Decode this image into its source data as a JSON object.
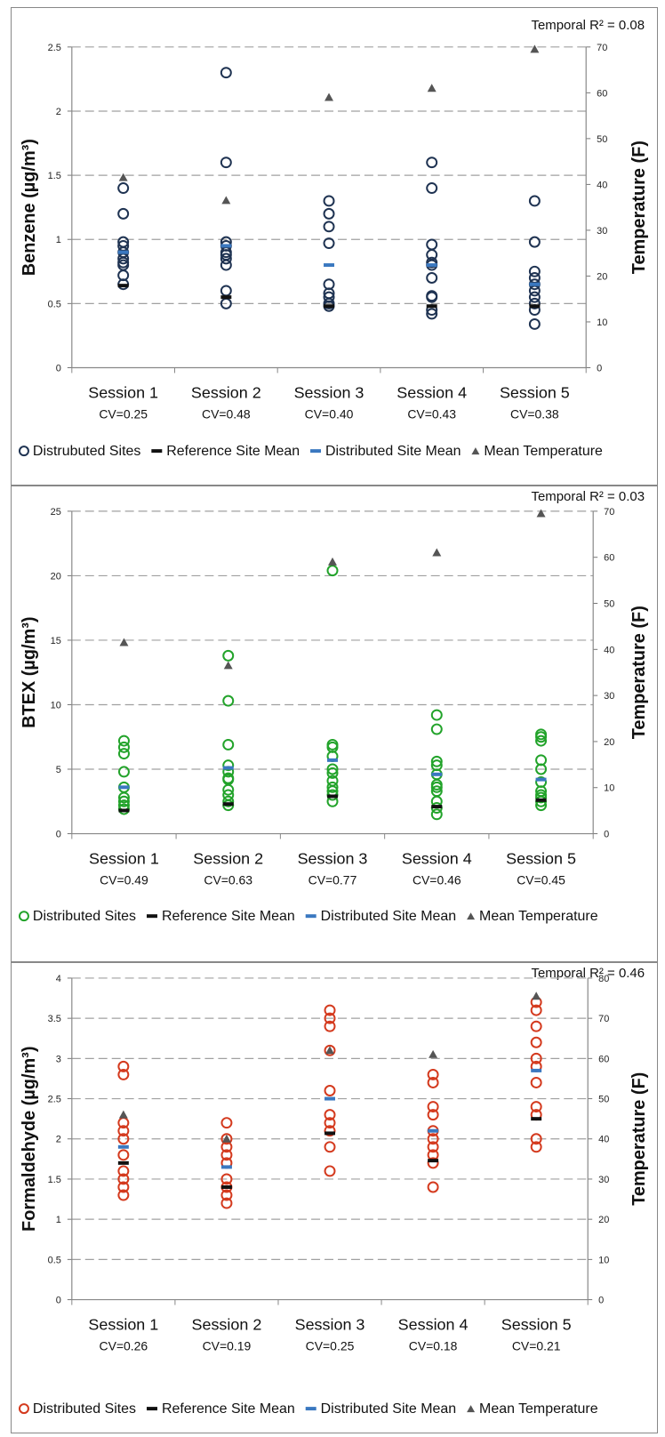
{
  "legend_labels": {
    "distributed_benzene": "Distrubuted Sites",
    "distributed": "Distributed Sites",
    "reference_mean": "Reference Site Mean",
    "distributed_mean": "Distributed Site Mean",
    "temperature": "Mean Temperature"
  },
  "colors": {
    "benzene": "#1f3352",
    "btex": "#22a32a",
    "formaldehyde": "#d43a1e",
    "reference_mean": "#111111",
    "distributed_mean": "#3a78c0",
    "temperature": "#555555",
    "grid": "#a0a0a0"
  },
  "chart_data": [
    {
      "type": "scatter",
      "ylabel": "Benzene (µg/m³)",
      "y2label": "Temperature (F)",
      "ylim": [
        0,
        2.5
      ],
      "yticks": [
        0,
        0.5,
        1,
        1.5,
        2,
        2.5
      ],
      "y2lim": [
        0,
        70
      ],
      "y2ticks": [
        0,
        10,
        20,
        30,
        40,
        50,
        60,
        70
      ],
      "r2_label": "Temporal R² = 0.08",
      "categories": [
        "Session 1",
        "Session 2",
        "Session 3",
        "Session 4",
        "Session 5"
      ],
      "cv_labels": [
        "CV=0.25",
        "CV=0.48",
        "CV=0.40",
        "CV=0.43",
        "CV=0.38"
      ],
      "legend_key": "distributed_benzene",
      "series": [
        {
          "name": "Distrubuted Sites",
          "kind": "distributed",
          "color_key": "benzene",
          "values": [
            [
              1.4,
              1.2,
              0.98,
              0.95,
              0.9,
              0.85,
              0.82,
              0.8,
              0.72,
              0.65
            ],
            [
              2.3,
              1.6,
              0.98,
              0.95,
              0.9,
              0.88,
              0.85,
              0.8,
              0.6,
              0.5
            ],
            [
              1.3,
              1.2,
              1.1,
              0.97,
              0.65,
              0.58,
              0.55,
              0.5,
              0.48
            ],
            [
              1.6,
              1.4,
              0.96,
              0.88,
              0.82,
              0.8,
              0.7,
              0.56,
              0.55,
              0.45,
              0.42
            ],
            [
              1.3,
              0.98,
              0.75,
              0.7,
              0.65,
              0.6,
              0.55,
              0.5,
              0.45,
              0.34
            ]
          ]
        },
        {
          "name": "Reference Site Mean",
          "kind": "reference_mean",
          "values": [
            0.64,
            0.55,
            0.48,
            0.48,
            0.48
          ]
        },
        {
          "name": "Distributed Site Mean",
          "kind": "distributed_mean",
          "values": [
            0.9,
            0.95,
            0.8,
            0.8,
            0.65
          ]
        },
        {
          "name": "Mean Temperature",
          "kind": "temperature",
          "axis": "y2",
          "values": [
            41.5,
            36.5,
            59,
            61,
            69.5
          ]
        }
      ]
    },
    {
      "type": "scatter",
      "ylabel": "BTEX (µg/m³)",
      "y2label": "Temperature (F)",
      "ylim": [
        0,
        25
      ],
      "yticks": [
        0,
        5,
        10,
        15,
        20,
        25
      ],
      "y2lim": [
        0,
        70
      ],
      "y2ticks": [
        0,
        10,
        20,
        30,
        40,
        50,
        60,
        70
      ],
      "r2_label": "Temporal R² = 0.03",
      "categories": [
        "Session 1",
        "Session 2",
        "Session 3",
        "Session 4",
        "Session 5"
      ],
      "cv_labels": [
        "CV=0.49",
        "CV=0.63",
        "CV=0.77",
        "CV=0.46",
        "CV=0.45"
      ],
      "legend_key": "distributed",
      "series": [
        {
          "name": "Distributed Sites",
          "kind": "distributed",
          "color_key": "btex",
          "values": [
            [
              7.2,
              6.7,
              6.2,
              4.8,
              3.6,
              2.8,
              2.5,
              2.2,
              1.9
            ],
            [
              13.8,
              10.3,
              6.9,
              5.3,
              4.8,
              4.3,
              4.2,
              3.4,
              3.0,
              2.5,
              2.2
            ],
            [
              20.4,
              6.9,
              6.7,
              6.0,
              5.0,
              4.7,
              4.1,
              3.6,
              3.3,
              3.0,
              2.5
            ],
            [
              9.2,
              8.1,
              5.6,
              5.3,
              4.6,
              3.8,
              3.6,
              3.3,
              2.5,
              2.0,
              1.5
            ],
            [
              7.7,
              7.5,
              7.2,
              5.7,
              5.0,
              4.0,
              3.3,
              3.0,
              2.8,
              2.5,
              2.2
            ]
          ]
        },
        {
          "name": "Reference Site Mean",
          "kind": "reference_mean",
          "values": [
            1.8,
            2.3,
            2.9,
            2.1,
            2.6
          ]
        },
        {
          "name": "Distributed Site Mean",
          "kind": "distributed_mean",
          "values": [
            3.6,
            5.1,
            5.7,
            4.6,
            4.2
          ]
        },
        {
          "name": "Mean Temperature",
          "kind": "temperature",
          "axis": "y2",
          "values": [
            41.5,
            36.5,
            59,
            61,
            69.5
          ]
        }
      ]
    },
    {
      "type": "scatter",
      "ylabel": "Formaldehyde (µg/m³)",
      "y2label": "Temperature (F)",
      "ylim": [
        0,
        4
      ],
      "yticks": [
        0,
        0.5,
        1,
        1.5,
        2,
        2.5,
        3,
        3.5,
        4
      ],
      "y2lim": [
        0,
        80
      ],
      "y2ticks": [
        0,
        10,
        20,
        30,
        40,
        50,
        60,
        70,
        80
      ],
      "r2_label": "Temporal R² = 0.46",
      "categories": [
        "Session 1",
        "Session 2",
        "Session 3",
        "Session 4",
        "Session 5"
      ],
      "cv_labels": [
        "CV=0.26",
        "CV=0.19",
        "CV=0.25",
        "CV=0.18",
        "CV=0.21"
      ],
      "legend_key": "distributed",
      "series": [
        {
          "name": "Distributed Sites",
          "kind": "distributed",
          "color_key": "formaldehyde",
          "values": [
            [
              2.9,
              2.8,
              2.2,
              2.1,
              2.0,
              1.8,
              1.6,
              1.5,
              1.4,
              1.3
            ],
            [
              2.2,
              2.0,
              1.9,
              1.8,
              1.7,
              1.5,
              1.4,
              1.3,
              1.2
            ],
            [
              3.6,
              3.5,
              3.4,
              3.1,
              2.6,
              2.3,
              2.2,
              2.1,
              1.9,
              1.6
            ],
            [
              2.8,
              2.7,
              2.4,
              2.3,
              2.1,
              2.0,
              1.9,
              1.8,
              1.7,
              1.4
            ],
            [
              3.7,
              3.6,
              3.4,
              3.2,
              3.0,
              2.9,
              2.7,
              2.4,
              2.3,
              2.0,
              1.9
            ]
          ]
        },
        {
          "name": "Reference Site Mean",
          "kind": "reference_mean",
          "values": [
            1.7,
            1.4,
            2.07,
            1.73,
            2.25
          ]
        },
        {
          "name": "Distributed Site Mean",
          "kind": "distributed_mean",
          "values": [
            1.9,
            1.65,
            2.5,
            2.1,
            2.85
          ]
        },
        {
          "name": "Mean Temperature",
          "kind": "temperature",
          "axis": "y2",
          "values": [
            46,
            40,
            62,
            61,
            75.5
          ]
        }
      ]
    }
  ]
}
